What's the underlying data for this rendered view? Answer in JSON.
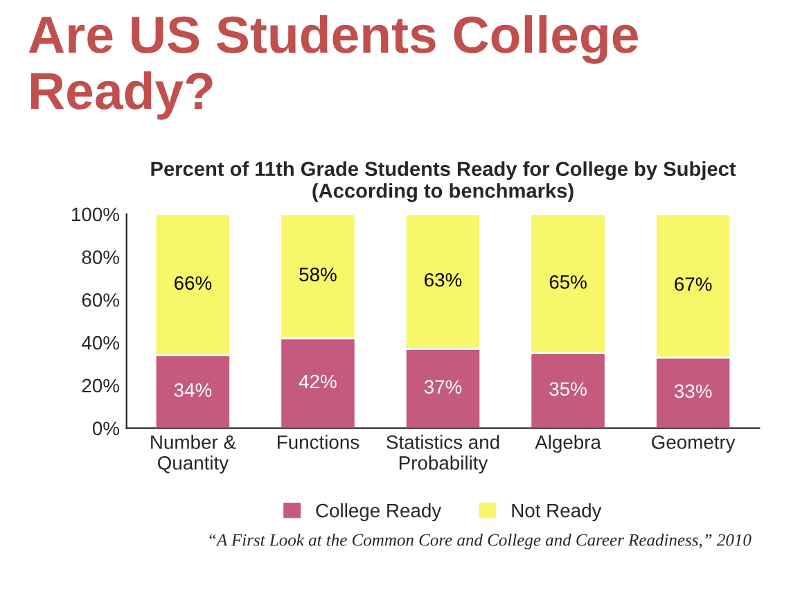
{
  "chart_data": {
    "type": "bar",
    "stacked": true,
    "title": "Are US Students College Ready?",
    "subtitle": "Percent of 11th Grade Students Ready for College by Subject (According to benchmarks)",
    "categories": [
      "Number &\nQuantity",
      "Functions",
      "Statistics and\nProbability",
      "Algebra",
      "Geometry"
    ],
    "series": [
      {
        "name": "College Ready",
        "color": "#c55a7f",
        "values": [
          34,
          42,
          37,
          35,
          33
        ],
        "value_labels": [
          "34%",
          "42%",
          "37%",
          "35%",
          "33%"
        ]
      },
      {
        "name": "Not Ready",
        "color": "#f7f76a",
        "values": [
          66,
          58,
          63,
          65,
          67
        ],
        "value_labels": [
          "66%",
          "58%",
          "63%",
          "65%",
          "67%"
        ]
      }
    ],
    "ylim": [
      0,
      100
    ],
    "yticks": [
      {
        "value": 0,
        "label": "0%"
      },
      {
        "value": 20,
        "label": "20%"
      },
      {
        "value": 40,
        "label": "40%"
      },
      {
        "value": 60,
        "label": "60%"
      },
      {
        "value": 80,
        "label": "80%"
      },
      {
        "value": 100,
        "label": "100%"
      }
    ],
    "grid": false,
    "legend": "bottom",
    "annotations": [
      "“A First Look at the Common Core and College and Career Readiness,” 2010"
    ]
  }
}
